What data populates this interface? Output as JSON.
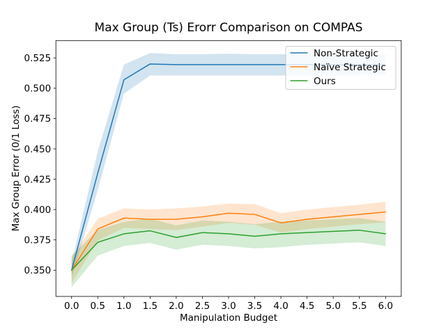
{
  "figure": {
    "background": "#ffffff"
  },
  "chart_data": {
    "type": "line",
    "title": "Max Group (Ts) Erorr Comparison on COMPAS",
    "xlabel": "Manipulation Budget",
    "ylabel": "Max Group Error (0/1 Loss)",
    "x": [
      0.0,
      0.5,
      1.0,
      1.5,
      2.0,
      2.5,
      3.0,
      3.5,
      4.0,
      4.5,
      5.0,
      5.5,
      6.0
    ],
    "xtick_labels": [
      "0.0",
      "0.5",
      "1.0",
      "1.5",
      "2.0",
      "2.5",
      "3.0",
      "3.5",
      "4.0",
      "4.5",
      "5.0",
      "5.5",
      "6.0"
    ],
    "ytick_labels": [
      "0.350",
      "0.375",
      "0.400",
      "0.425",
      "0.450",
      "0.475",
      "0.500",
      "0.525"
    ],
    "xlim": [
      -0.3,
      6.3
    ],
    "ylim": [
      0.3284,
      0.5393
    ],
    "grid": false,
    "axis_color": "#000000",
    "band_alpha": 0.2,
    "legend": {
      "position": "upper right",
      "border_color": "#cccccc",
      "background_color": "#ffffff",
      "background_opacity": 0.8
    },
    "series": [
      {
        "name": "Non-Strategic",
        "color": "#1f77b4",
        "values": [
          0.35,
          0.43,
          0.507,
          0.52,
          0.5195,
          0.5195,
          0.5195,
          0.5195,
          0.5195,
          0.5195,
          0.5195,
          0.5195,
          0.5195
        ],
        "ci_lower": [
          0.344,
          0.416,
          0.4955,
          0.5105,
          0.5105,
          0.5105,
          0.5105,
          0.5105,
          0.5105,
          0.5105,
          0.5105,
          0.511,
          0.511
        ],
        "ci_upper": [
          0.356,
          0.448,
          0.5195,
          0.529,
          0.528,
          0.528,
          0.5285,
          0.528,
          0.528,
          0.528,
          0.528,
          0.529,
          0.528
        ]
      },
      {
        "name": "Naïve Strategic",
        "color": "#ff7f0e",
        "values": [
          0.35,
          0.384,
          0.393,
          0.392,
          0.392,
          0.394,
          0.397,
          0.396,
          0.389,
          0.392,
          0.394,
          0.396,
          0.398
        ],
        "ci_lower": [
          0.3395,
          0.3745,
          0.385,
          0.384,
          0.383,
          0.386,
          0.389,
          0.3875,
          0.381,
          0.384,
          0.386,
          0.388,
          0.3895
        ],
        "ci_upper": [
          0.3605,
          0.3925,
          0.401,
          0.4,
          0.401,
          0.4025,
          0.405,
          0.4045,
          0.397,
          0.4,
          0.402,
          0.404,
          0.4065
        ]
      },
      {
        "name": "Ours",
        "color": "#2ca02c",
        "values": [
          0.35,
          0.373,
          0.38,
          0.3825,
          0.377,
          0.381,
          0.38,
          0.378,
          0.38,
          0.381,
          0.382,
          0.383,
          0.38
        ],
        "ci_lower": [
          0.336,
          0.362,
          0.37,
          0.3725,
          0.367,
          0.371,
          0.37,
          0.368,
          0.369,
          0.371,
          0.372,
          0.373,
          0.37
        ],
        "ci_upper": [
          0.362,
          0.383,
          0.39,
          0.3925,
          0.387,
          0.391,
          0.39,
          0.388,
          0.39,
          0.391,
          0.392,
          0.393,
          0.39
        ]
      }
    ]
  }
}
